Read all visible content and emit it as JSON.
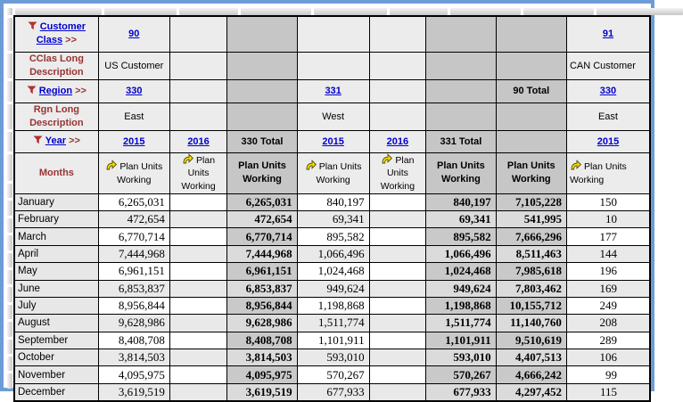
{
  "colors": {
    "window_border": "#6C9CD6",
    "link": "#0000CC",
    "maroon": "#993333",
    "header_bg": "#ECECEC",
    "total_bg": "#C6C6C6",
    "alt_bg": "#E9E9E9",
    "total_odd": "#C9C9C9",
    "total_even": "#DBDBDB",
    "month_bg": "#E7E7E7"
  },
  "grid": {
    "row_headers": [
      {
        "label": "Customer Class",
        "suffix": ">>",
        "filter_icon": true,
        "is_link": true
      },
      {
        "label": "CClas Long Description",
        "filter_icon": false
      },
      {
        "label": "Region",
        "suffix": ">>",
        "filter_icon": true,
        "is_link": true
      },
      {
        "label": "Rgn Long Description",
        "filter_icon": false
      },
      {
        "label": "Year",
        "suffix": ">>",
        "filter_icon": true,
        "is_link": true
      },
      {
        "label": "Months",
        "filter_icon": false
      }
    ],
    "months": [
      "January",
      "February",
      "March",
      "April",
      "May",
      "June",
      "July",
      "August",
      "September",
      "October",
      "November",
      "December"
    ],
    "columns": [
      {
        "kind": "plain",
        "customer_class": "90",
        "cclas_long_description": "US Customer",
        "region": "330",
        "rgn_long_description": "East",
        "year": "2015",
        "measure": "Plan Units Working",
        "measure_icon": true,
        "values": [
          "6,265,031",
          "472,654",
          "6,770,714",
          "7,444,968",
          "6,961,151",
          "6,853,837",
          "8,956,844",
          "9,628,986",
          "8,408,708",
          "3,814,503",
          "4,095,975",
          "3,619,519"
        ]
      },
      {
        "kind": "plain",
        "year": "2016",
        "measure": "Plan Units Working",
        "measure_icon": true,
        "values": [
          "",
          "",
          "",
          "",
          "",
          "",
          "",
          "",
          "",
          "",
          "",
          ""
        ]
      },
      {
        "kind": "total",
        "year": "330 Total",
        "measure": "Plan Units Working",
        "measure_icon": false,
        "values": [
          "6,265,031",
          "472,654",
          "6,770,714",
          "7,444,968",
          "6,961,151",
          "6,853,837",
          "8,956,844",
          "9,628,986",
          "8,408,708",
          "3,814,503",
          "4,095,975",
          "3,619,519"
        ]
      },
      {
        "kind": "plain",
        "region": "331",
        "rgn_long_description": "West",
        "year": "2015",
        "measure": "Plan Units Working",
        "measure_icon": true,
        "values": [
          "840,197",
          "69,341",
          "895,582",
          "1,066,496",
          "1,024,468",
          "949,624",
          "1,198,868",
          "1,511,774",
          "1,101,911",
          "593,010",
          "570,267",
          "677,933"
        ]
      },
      {
        "kind": "plain",
        "year": "2016",
        "measure": "Plan Units Working",
        "measure_icon": true,
        "values": [
          "",
          "",
          "",
          "",
          "",
          "",
          "",
          "",
          "",
          "",
          "",
          ""
        ]
      },
      {
        "kind": "total",
        "year": "331 Total",
        "measure": "Plan Units Working",
        "measure_icon": false,
        "values": [
          "840,197",
          "69,341",
          "895,582",
          "1,066,496",
          "1,024,468",
          "949,624",
          "1,198,868",
          "1,511,774",
          "1,101,911",
          "593,010",
          "570,267",
          "677,933"
        ]
      },
      {
        "kind": "total",
        "region": "90 Total",
        "measure": "Plan Units Working",
        "measure_icon": false,
        "values": [
          "7,105,228",
          "541,995",
          "7,666,296",
          "8,511,463",
          "7,985,618",
          "7,803,462",
          "10,155,712",
          "11,140,760",
          "9,510,619",
          "4,407,513",
          "4,666,242",
          "4,297,452"
        ]
      },
      {
        "kind": "plain",
        "clipped": true,
        "customer_class": "91",
        "cclas_long_description": "CAN Customer",
        "region": "330",
        "rgn_long_description": "East",
        "year": "2015",
        "measure": "Plan Units Working",
        "measure_icon": true,
        "values": [
          "150",
          "10",
          "177",
          "144",
          "196",
          "169",
          "249",
          "208",
          "289",
          "106",
          "99",
          "115"
        ]
      }
    ]
  }
}
